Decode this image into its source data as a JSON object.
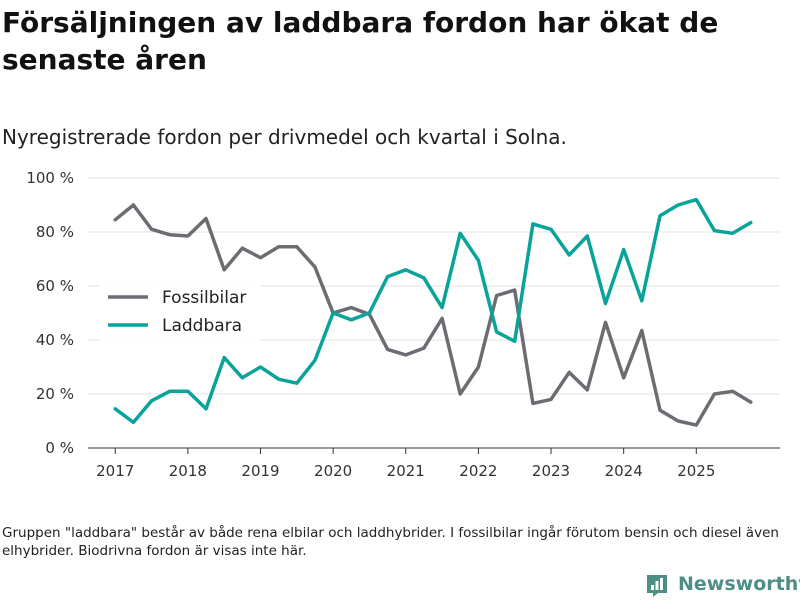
{
  "title": "Försäljningen av laddbara fordon har ökat de senaste åren",
  "subtitle": "Nyregistrerade fordon per drivmedel och kvartal i Solna.",
  "footnote": "Gruppen \"laddbara\" består av både rena elbilar och laddhybrider. I fossilbilar ingår förutom bensin och diesel även elhybrider. Biodrivna fordon är visas inte här.",
  "brand": {
    "name": "Newsworthy",
    "icon": "newsworthy-logo-icon",
    "color": "#4e8e86"
  },
  "colors": {
    "fossil": "#6e6c73",
    "laddbara": "#0aa39a",
    "grid": "#e3e3e3",
    "axis": "#333333",
    "text": "#333333"
  },
  "chart_data": {
    "type": "line",
    "x_labels": [
      "2017",
      "2018",
      "2019",
      "2020",
      "2021",
      "2022",
      "2023",
      "2024",
      "2025"
    ],
    "x_label_years": [
      2017,
      2018,
      2019,
      2020,
      2021,
      2022,
      2023,
      2024,
      2025
    ],
    "x_range": [
      2016.625,
      2026.125
    ],
    "y_ticks": [
      0,
      20,
      40,
      60,
      80,
      100
    ],
    "y_tick_labels": [
      "0 %",
      "20 %",
      "40 %",
      "60 %",
      "80 %",
      "100 %"
    ],
    "ylim": [
      0,
      100
    ],
    "legend_position": "left",
    "quarters": [
      2017.0,
      2017.25,
      2017.5,
      2017.75,
      2018.0,
      2018.25,
      2018.5,
      2018.75,
      2019.0,
      2019.25,
      2019.5,
      2019.75,
      2020.0,
      2020.25,
      2020.5,
      2020.75,
      2021.0,
      2021.25,
      2021.5,
      2021.75,
      2022.0,
      2022.25,
      2022.5,
      2022.75,
      2023.0,
      2023.25,
      2023.5,
      2023.75,
      2024.0,
      2024.25,
      2024.5,
      2024.75,
      2025.0,
      2025.25,
      2025.5,
      2025.75
    ],
    "series": [
      {
        "name": "Fossilbilar",
        "key": "fossil",
        "values": [
          84.5,
          90,
          81,
          79,
          78.5,
          85,
          66,
          74,
          70.5,
          74.5,
          74.5,
          67,
          50,
          52,
          49.5,
          36.5,
          34.5,
          37,
          48,
          20,
          30,
          56.5,
          58.5,
          16.5,
          18,
          28,
          21.5,
          46.5,
          26,
          43.5,
          14,
          10,
          8.5,
          20,
          21,
          17
        ]
      },
      {
        "name": "Laddbara",
        "key": "laddbara",
        "values": [
          14.5,
          9.5,
          17.5,
          21,
          21,
          14.5,
          33.5,
          26,
          30,
          25.5,
          24,
          32.5,
          50,
          47.5,
          50,
          63.5,
          66,
          63,
          52,
          79.5,
          69.5,
          43,
          39.5,
          83,
          81,
          71.5,
          78.5,
          53.5,
          73.5,
          54.5,
          86,
          90,
          92,
          80.5,
          79.5,
          83.5
        ]
      }
    ]
  }
}
